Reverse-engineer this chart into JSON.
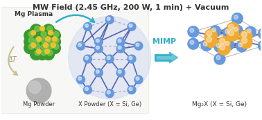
{
  "title": "MW Field (2.45 GHz, 200 W, 1 min) + Vacuum",
  "title_fontsize": 8.0,
  "title_fontweight": "bold",
  "bg_color": "#ffffff",
  "mg_plasma_label": "Mg Plasma",
  "mg_powder_label": "Mg Powder",
  "x_powder_label": "X Powder (X = Si, Ge)",
  "mg2x_label": "Mg₂X (X = Si, Ge)",
  "mimp_label": "MIMP",
  "delta_t_label": "ΔT",
  "green_dark": "#3a9a30",
  "green_light": "#7acc50",
  "yellow_dot": "#f0c030",
  "gray_powder": "#999999",
  "blue_atom": "#6699dd",
  "blue_dark": "#4455aa",
  "orange_bond": "#dd8810",
  "orange_atom": "#f0aa30",
  "gray_cube": "#aaaaaa",
  "teal_arrow": "#30b0c8",
  "cream_arrow": "#c8c090",
  "mimp_color": "#30b0c8",
  "figsize": [
    3.78,
    1.73
  ],
  "dpi": 100
}
